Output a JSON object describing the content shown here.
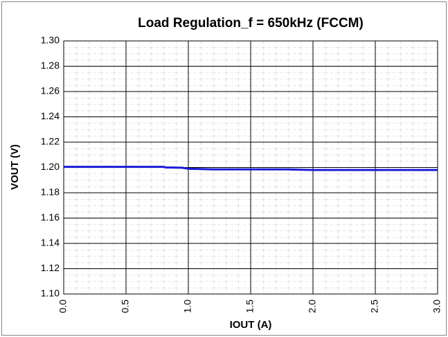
{
  "chart_data": {
    "type": "line",
    "title": "Load Regulation_f = 650kHz (FCCM)",
    "x_label": "IOUT (A)",
    "y_label": "VOUT (V)",
    "x": [
      0,
      0.2,
      0.4,
      0.6,
      0.8,
      0.82,
      0.95,
      1.0,
      1.1,
      1.2,
      1.5,
      1.8,
      1.9,
      2.0,
      2.5,
      3.0
    ],
    "values": [
      1.2005,
      1.2005,
      1.2005,
      1.2005,
      1.2005,
      1.2,
      1.1998,
      1.199,
      1.1988,
      1.1985,
      1.1985,
      1.1985,
      1.1982,
      1.198,
      1.198,
      1.198
    ],
    "color": "#1a1ad6",
    "xlim": [
      0,
      3.0
    ],
    "xticks": [
      {
        "value": 0,
        "label": "0.0"
      },
      0.5,
      {
        "value": 1,
        "label": "1.0"
      },
      1.5,
      {
        "value": 2,
        "label": "2.0"
      },
      2.5,
      {
        "value": 3,
        "label": "3.0"
      }
    ],
    "ylim": [
      1.1,
      1.3
    ],
    "yticks": [
      {
        "value": 1.1,
        "label": "1.10"
      },
      1.12,
      1.14,
      1.16,
      1.18,
      {
        "value": 1.2,
        "label": "1.20"
      },
      1.22,
      1.24,
      1.26,
      1.28,
      {
        "value": 1.3,
        "label": "1.30"
      }
    ],
    "grid": true,
    "minor_grid": true
  }
}
